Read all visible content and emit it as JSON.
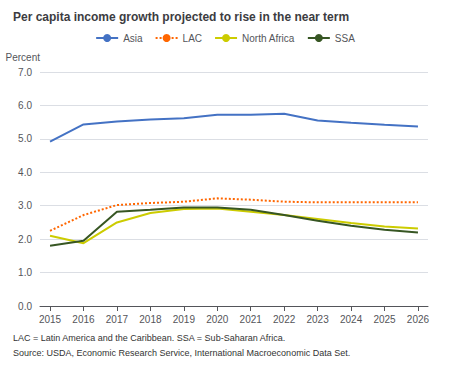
{
  "chart_data": {
    "type": "line",
    "title": "Per capita income growth projected to rise in the near term",
    "ylabel": "Percent",
    "annotations": [
      "LAC = Latin America and the Caribbean. SSA = Sub-Saharan Africa.",
      "Source: USDA, Economic Research Service, International Macroeconomic Data Set."
    ],
    "x": [
      2015,
      2016,
      2017,
      2018,
      2019,
      2020,
      2021,
      2022,
      2023,
      2024,
      2025,
      2026
    ],
    "series": [
      {
        "name": "Asia",
        "color": "#4472C4",
        "line_style": "solid",
        "values": [
          4.92,
          5.43,
          5.52,
          5.58,
          5.62,
          5.72,
          5.72,
          5.75,
          5.55,
          5.48,
          5.42,
          5.37
        ]
      },
      {
        "name": "LAC",
        "color": "#FF6600",
        "line_style": "dotted",
        "values": [
          2.25,
          2.72,
          3.02,
          3.08,
          3.12,
          3.22,
          3.18,
          3.12,
          3.1,
          3.1,
          3.1,
          3.1
        ]
      },
      {
        "name": "North Africa",
        "color": "#CCCC00",
        "line_style": "solid",
        "values": [
          2.1,
          1.88,
          2.5,
          2.78,
          2.9,
          2.92,
          2.82,
          2.72,
          2.6,
          2.48,
          2.38,
          2.32
        ]
      },
      {
        "name": "SSA",
        "color": "#375623",
        "line_style": "solid",
        "values": [
          1.8,
          1.95,
          2.82,
          2.88,
          2.95,
          2.95,
          2.88,
          2.72,
          2.55,
          2.4,
          2.28,
          2.2
        ]
      }
    ],
    "xlim": [
      2014.7,
      2026.3
    ],
    "xticks": [
      2015,
      2016,
      2017,
      2018,
      2019,
      2020,
      2021,
      2022,
      2023,
      2024,
      2025,
      2026
    ],
    "ylim": [
      0.0,
      7.0
    ],
    "yticks": [
      {
        "value": 0,
        "label": "0.0"
      },
      {
        "value": 1,
        "label": "1.0"
      },
      {
        "value": 2,
        "label": "2.0"
      },
      {
        "value": 3,
        "label": "3.0"
      },
      {
        "value": 4,
        "label": "4.0"
      },
      {
        "value": 5,
        "label": "5.0"
      },
      {
        "value": 6,
        "label": "6.0"
      },
      {
        "value": 7,
        "label": "7.0"
      }
    ],
    "grid": true,
    "legend": "top"
  }
}
